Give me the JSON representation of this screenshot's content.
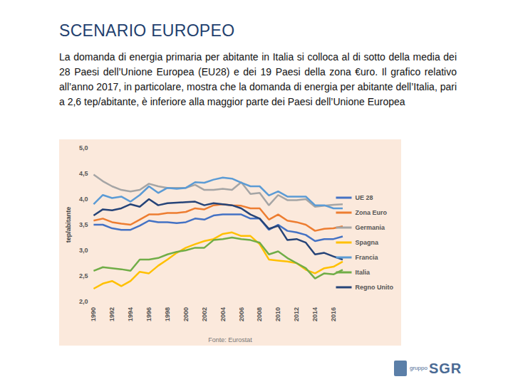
{
  "slide": {
    "title": "SCENARIO EUROPEO",
    "text": "La domanda di energia primaria per abitante in Italia si colloca al di sotto della media dei 28 Paesi dell’Unione Europea (EU28) e dei 19 Paesi della zona €uro. Il grafico relativo all’anno 2017, in particolare, mostra che la domanda di energia per abitante dell’Italia, pari a 2,6 tep/abitante, è inferiore alla maggior parte dei Paesi dell’Unione Europea",
    "logo": [
      "gruppo",
      "SGR"
    ]
  },
  "chart_data": {
    "type": "line",
    "y_label": "tep/abitante",
    "source": "Fonte: Eurostat",
    "categories": [
      "1990",
      null,
      "1992",
      null,
      "1994",
      null,
      "1996",
      null,
      "1998",
      null,
      "2000",
      null,
      "2002",
      null,
      "2004",
      null,
      "2006",
      null,
      "2008",
      null,
      "2010",
      null,
      "2012",
      null,
      "2014",
      null,
      "2016",
      null
    ],
    "series": [
      {
        "name": "UE 28",
        "color": "#4472c4",
        "values": [
          3.5,
          3.5,
          3.43,
          3.4,
          3.4,
          3.48,
          3.58,
          3.55,
          3.55,
          3.53,
          3.55,
          3.62,
          3.6,
          3.68,
          3.7,
          3.7,
          3.7,
          3.62,
          3.62,
          3.4,
          3.5,
          3.38,
          3.35,
          3.3,
          3.18,
          3.22,
          3.22,
          3.27
        ]
      },
      {
        "name": "Zona Euro",
        "color": "#ed7d31",
        "values": [
          3.58,
          3.62,
          3.55,
          3.52,
          3.5,
          3.6,
          3.7,
          3.7,
          3.73,
          3.73,
          3.75,
          3.82,
          3.8,
          3.88,
          3.9,
          3.88,
          3.87,
          3.82,
          3.82,
          3.6,
          3.7,
          3.58,
          3.55,
          3.5,
          3.38,
          3.42,
          3.43,
          3.47
        ]
      },
      {
        "name": "Germania",
        "color": "#a5a5a5",
        "values": [
          4.48,
          4.35,
          4.25,
          4.18,
          4.15,
          4.18,
          4.3,
          4.25,
          4.22,
          4.22,
          4.22,
          4.28,
          4.18,
          4.18,
          4.2,
          4.18,
          4.33,
          4.1,
          4.12,
          3.88,
          4.08,
          3.98,
          3.98,
          4.0,
          3.85,
          3.87,
          3.89,
          3.9
        ]
      },
      {
        "name": "Spagna",
        "color": "#ffc000",
        "values": [
          2.25,
          2.35,
          2.4,
          2.3,
          2.4,
          2.58,
          2.55,
          2.7,
          2.82,
          2.95,
          3.05,
          3.12,
          3.18,
          3.22,
          3.32,
          3.35,
          3.28,
          3.28,
          3.12,
          2.82,
          2.8,
          2.78,
          2.75,
          2.62,
          2.55,
          2.65,
          2.68,
          2.78
        ]
      },
      {
        "name": "Francia",
        "color": "#5b9bd5",
        "values": [
          3.9,
          4.08,
          4.02,
          4.05,
          3.95,
          4.08,
          4.25,
          4.12,
          4.22,
          4.2,
          4.22,
          4.33,
          4.32,
          4.38,
          4.42,
          4.4,
          4.32,
          4.25,
          4.25,
          4.07,
          4.15,
          4.05,
          4.05,
          4.05,
          3.88,
          3.88,
          3.82,
          3.82
        ]
      },
      {
        "name": "Italia",
        "color": "#70ad47",
        "values": [
          2.6,
          2.67,
          2.65,
          2.63,
          2.6,
          2.82,
          2.82,
          2.85,
          2.92,
          2.97,
          3.0,
          3.05,
          3.05,
          3.2,
          3.22,
          3.25,
          3.22,
          3.2,
          3.15,
          2.92,
          2.98,
          2.85,
          2.75,
          2.65,
          2.45,
          2.55,
          2.53,
          2.62
        ]
      },
      {
        "name": "Regno Unito",
        "color": "#264478",
        "values": [
          3.68,
          3.8,
          3.78,
          3.82,
          3.9,
          3.85,
          4.0,
          3.88,
          3.92,
          3.93,
          3.94,
          3.95,
          3.88,
          3.92,
          3.9,
          3.88,
          3.82,
          3.7,
          3.62,
          3.42,
          3.48,
          3.2,
          3.22,
          3.15,
          2.92,
          2.95,
          2.88,
          2.82
        ]
      }
    ],
    "ylim": [
      2,
      5
    ],
    "yticks": [
      {
        "value": 2,
        "label": "2,0"
      },
      {
        "value": 2.5,
        "label": "2,5"
      },
      {
        "value": 3,
        "label": "3,0"
      },
      {
        "value": 3.5,
        "label": "3,5"
      },
      {
        "value": 4,
        "label": "4,0"
      },
      {
        "value": 4.5,
        "label": "4,5"
      },
      {
        "value": 5,
        "label": "5,0"
      }
    ],
    "grid": false,
    "legend": "right"
  }
}
